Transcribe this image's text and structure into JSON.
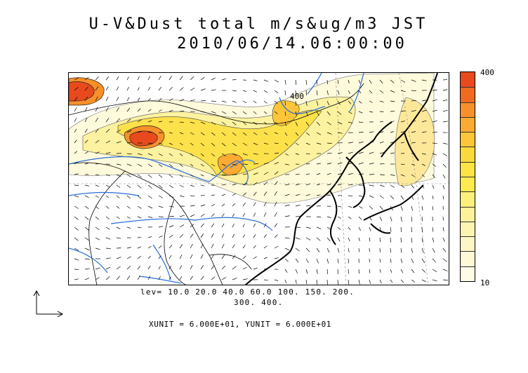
{
  "title": {
    "line1": "U-V&Dust total m/s&ug/m3 JST",
    "line2": "2010/06/14.06:00:00"
  },
  "colorbar": {
    "max_label": "400",
    "min_label": "10",
    "colors": [
      "#e84a1e",
      "#f06a22",
      "#f7902a",
      "#fbab31",
      "#fcc638",
      "#fbd83c",
      "#fde444",
      "#fdea4f",
      "#fdf07a",
      "#fdf29a",
      "#fdf4b2",
      "#fdf6c5",
      "#fef9d6",
      "#fefbe6"
    ]
  },
  "legend": {
    "levels_line1": "lev= 10.0 20.0 40.0 60.0 100. 150. 200.",
    "levels_line2": "300. 400.",
    "units": "XUNIT = 6.000E+01, YUNIT = 6.000E+01"
  },
  "map": {
    "contour_label": "400"
  }
}
